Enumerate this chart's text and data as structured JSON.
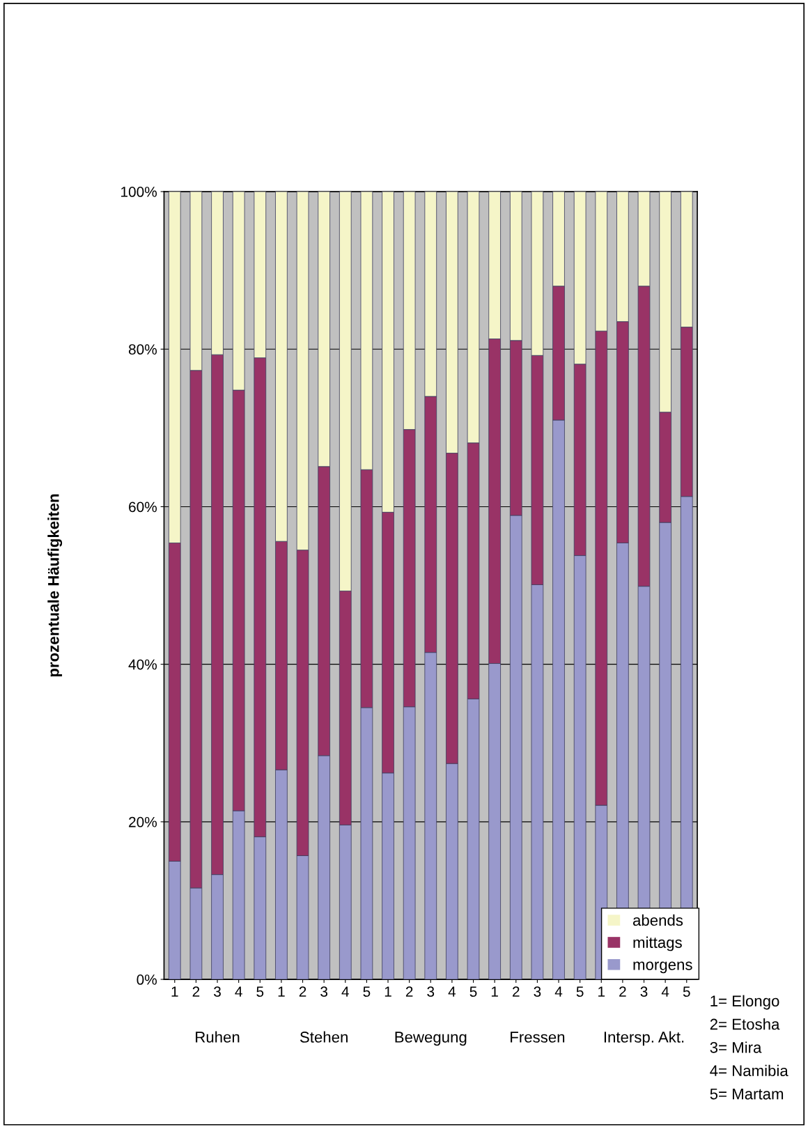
{
  "chart_data": {
    "type": "bar",
    "stacked": true,
    "ylabel": "prozentuale Häufigkeiten",
    "categories": [
      "1",
      "2",
      "3",
      "4",
      "5",
      "1",
      "2",
      "3",
      "4",
      "5",
      "1",
      "2",
      "3",
      "4",
      "5",
      "1",
      "2",
      "3",
      "4",
      "5",
      "1",
      "2",
      "3",
      "4",
      "5"
    ],
    "series": [
      {
        "name": "morgens",
        "color": "#9999cc",
        "values": [
          15.0,
          11.6,
          13.3,
          21.4,
          18.1,
          26.6,
          15.7,
          28.4,
          19.6,
          34.5,
          26.2,
          34.6,
          41.5,
          27.4,
          35.6,
          40.1,
          58.9,
          50.1,
          71.0,
          53.8,
          22.1,
          55.4,
          49.9,
          58.0,
          61.3
        ]
      },
      {
        "name": "mittags",
        "color": "#993366",
        "values": [
          40.4,
          65.7,
          66.0,
          53.4,
          60.8,
          29.0,
          38.8,
          36.7,
          29.7,
          30.2,
          33.1,
          35.2,
          32.5,
          39.4,
          32.5,
          41.2,
          22.2,
          29.1,
          17.0,
          24.3,
          60.2,
          28.1,
          38.1,
          14.0,
          21.5
        ]
      },
      {
        "name": "abends",
        "color": "#f5f5c8",
        "values": [
          44.6,
          22.7,
          20.7,
          25.2,
          21.1,
          44.4,
          45.5,
          34.9,
          50.7,
          35.3,
          40.7,
          30.2,
          26.0,
          33.2,
          31.9,
          18.7,
          18.9,
          20.8,
          12.0,
          21.9,
          17.7,
          16.5,
          12.0,
          28.0,
          17.2
        ]
      }
    ],
    "ylim": [
      0,
      100
    ],
    "yticks": [
      {
        "value": 0,
        "label": "0%"
      },
      {
        "value": 20,
        "label": "20%"
      },
      {
        "value": 40,
        "label": "40%"
      },
      {
        "value": 60,
        "label": "60%"
      },
      {
        "value": 80,
        "label": "80%"
      },
      {
        "value": 100,
        "label": "100%"
      }
    ],
    "grid": "y",
    "legend": "bottom right",
    "annotations": [
      "Ruhen",
      "Stehen",
      "Bewegung",
      "Fressen",
      "Intersp. Akt.",
      "1= Elongo",
      "2= Etosha",
      "3= Mira",
      "4= Namibia",
      "5= Martam"
    ]
  }
}
